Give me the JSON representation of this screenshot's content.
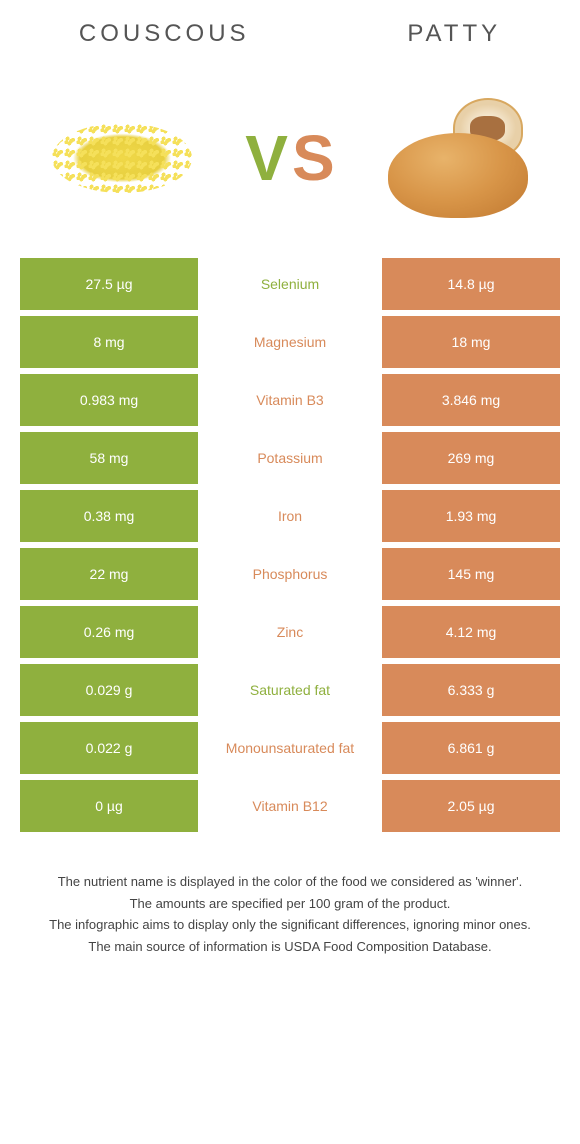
{
  "titles": {
    "left": "COUSCOUS",
    "right": "PATTY"
  },
  "vs": {
    "v": "V",
    "s": "S"
  },
  "colors": {
    "left_bg": "#8fb03e",
    "right_bg": "#d88a5a",
    "cell_text": "#ffffff"
  },
  "rows": [
    {
      "left": "27.5 µg",
      "label": "Selenium",
      "right": "14.8 µg",
      "winner": "left"
    },
    {
      "left": "8 mg",
      "label": "Magnesium",
      "right": "18 mg",
      "winner": "right"
    },
    {
      "left": "0.983 mg",
      "label": "Vitamin B3",
      "right": "3.846 mg",
      "winner": "right"
    },
    {
      "left": "58 mg",
      "label": "Potassium",
      "right": "269 mg",
      "winner": "right"
    },
    {
      "left": "0.38 mg",
      "label": "Iron",
      "right": "1.93 mg",
      "winner": "right"
    },
    {
      "left": "22 mg",
      "label": "Phosphorus",
      "right": "145 mg",
      "winner": "right"
    },
    {
      "left": "0.26 mg",
      "label": "Zinc",
      "right": "4.12 mg",
      "winner": "right"
    },
    {
      "left": "0.029 g",
      "label": "Saturated fat",
      "right": "6.333 g",
      "winner": "left"
    },
    {
      "left": "0.022 g",
      "label": "Monounsaturated fat",
      "right": "6.861 g",
      "winner": "right"
    },
    {
      "left": "0 µg",
      "label": "Vitamin B12",
      "right": "2.05 µg",
      "winner": "right"
    }
  ],
  "footnotes": [
    "The nutrient name is displayed in the color of the food we considered as 'winner'.",
    "The amounts are specified per 100 gram of the product.",
    "The infographic aims to display only the significant differences, ignoring minor ones.",
    "The main source of information is USDA Food Composition Database."
  ]
}
